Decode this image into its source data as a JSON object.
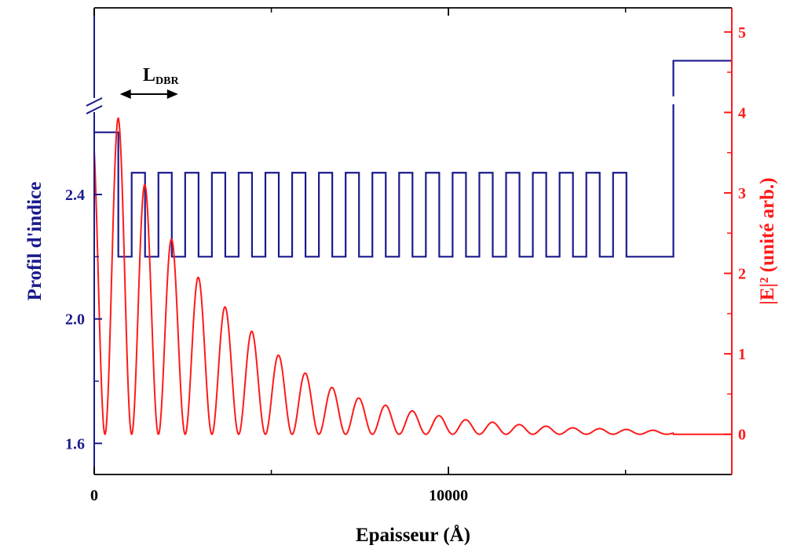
{
  "chart_data": {
    "type": "line",
    "xlabel": "Epaisseur (Å)",
    "ylabel_left": "Profil d'indice",
    "ylabel_right": "|E|² (unité arb.)",
    "annotation": {
      "label_main": "L",
      "label_sub": "DBR"
    },
    "x_axis": {
      "xlim": [
        0,
        18000
      ],
      "major_ticks": [
        0,
        10000
      ],
      "tick_labels": [
        "0",
        "10000"
      ],
      "minor_ticks": [
        5000,
        15000
      ]
    },
    "y_left_axis": {
      "ylim": [
        1.5,
        3.0
      ],
      "ticks": [
        1.6,
        2.0,
        2.4
      ],
      "tick_labels": [
        "1.6",
        "2.0",
        "2.4"
      ],
      "axis_break_at": 2.68
    },
    "y_right_axis": {
      "ylim": [
        -0.5,
        5.3
      ],
      "ticks": [
        0,
        1,
        2,
        3,
        4,
        5
      ],
      "tick_labels": [
        "0",
        "1",
        "2",
        "3",
        "4",
        "5"
      ]
    },
    "colors": {
      "index_profile": "#1a1a8c",
      "field": "#ff1a1a",
      "axis": "#000000"
    },
    "series": [
      {
        "name": "Profil d'indice",
        "axis": "left",
        "dbr": {
          "start": 680,
          "period": 755,
          "pairs": 19,
          "high_n": 2.47,
          "low_n": 2.2
        },
        "points": [
          [
            0,
            2.6
          ],
          [
            680,
            2.6
          ],
          [
            16350,
            2.2
          ],
          [
            16350,
            2.83
          ],
          [
            18000,
            2.83
          ]
        ]
      },
      {
        "name": "|E|²",
        "axis": "right",
        "oscillation_period": 755,
        "peaks": [
          [
            0,
            3.9
          ],
          [
            680,
            3.93
          ],
          [
            1430,
            3.1
          ],
          [
            2190,
            2.42
          ],
          [
            2940,
            1.95
          ],
          [
            3700,
            1.58
          ],
          [
            4450,
            1.28
          ],
          [
            5210,
            0.98
          ],
          [
            5960,
            0.76
          ],
          [
            6720,
            0.58
          ],
          [
            7470,
            0.45
          ],
          [
            8230,
            0.36
          ],
          [
            8980,
            0.29
          ],
          [
            9740,
            0.23
          ],
          [
            10490,
            0.18
          ],
          [
            11250,
            0.15
          ],
          [
            12000,
            0.12
          ],
          [
            12760,
            0.1
          ],
          [
            13510,
            0.08
          ],
          [
            14270,
            0.07
          ],
          [
            15020,
            0.06
          ],
          [
            15780,
            0.05
          ],
          [
            16350,
            0.03
          ],
          [
            18000,
            0.0
          ]
        ]
      }
    ]
  }
}
